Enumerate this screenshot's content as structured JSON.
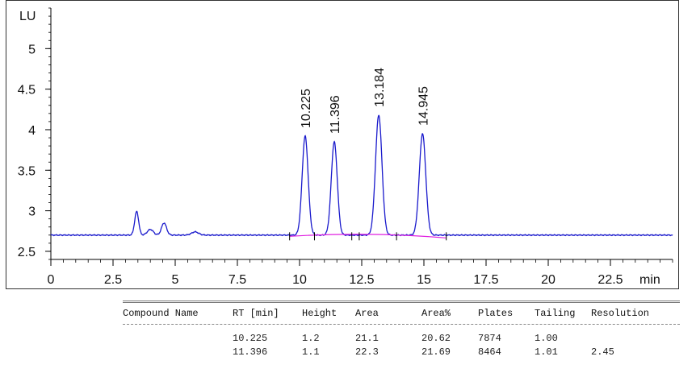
{
  "chart_data": {
    "type": "line",
    "ylabel": "LU",
    "xlabel": "min",
    "xlim": [
      0,
      25
    ],
    "ylim": [
      2.4,
      5.5
    ],
    "x_ticks": [
      "0",
      "2.5",
      "5",
      "7.5",
      "10",
      "12.5",
      "15",
      "17.5",
      "20",
      "22.5"
    ],
    "y_ticks": [
      "2.5",
      "3",
      "3.5",
      "4",
      "4.5",
      "5"
    ],
    "baseline": 2.7,
    "peaks": [
      {
        "rt": 3.45,
        "height": 2.99,
        "width": 0.08,
        "label": ""
      },
      {
        "rt": 4.0,
        "height": 2.77,
        "width": 0.12,
        "label": ""
      },
      {
        "rt": 4.55,
        "height": 2.85,
        "width": 0.1,
        "label": ""
      },
      {
        "rt": 5.8,
        "height": 2.74,
        "width": 0.14,
        "label": ""
      },
      {
        "rt": 10.225,
        "height": 3.92,
        "width": 0.12,
        "label": "10.225"
      },
      {
        "rt": 11.396,
        "height": 3.85,
        "width": 0.12,
        "label": "11.396"
      },
      {
        "rt": 13.184,
        "height": 4.18,
        "width": 0.13,
        "label": "13.184"
      },
      {
        "rt": 14.945,
        "height": 3.95,
        "width": 0.13,
        "label": "14.945"
      }
    ],
    "integration_baseline": {
      "start": 9.6,
      "end": 15.9,
      "color": "#e020e0"
    },
    "integration_markers": [
      9.6,
      10.6,
      12.1,
      12.4,
      13.9,
      15.9
    ],
    "trace_color": "#1a1acc"
  },
  "results_table": {
    "headers": [
      "Compound Name",
      "RT [min]",
      "Height",
      "Area",
      "Area%",
      "Plates",
      "Tailing",
      "Resolution"
    ],
    "rows": [
      [
        "",
        "10.225",
        "1.2",
        "21.1",
        "20.62",
        "7874",
        "1.00",
        ""
      ],
      [
        "",
        "11.396",
        "1.1",
        "22.3",
        "21.69",
        "8464",
        "1.01",
        "2.45"
      ]
    ]
  }
}
